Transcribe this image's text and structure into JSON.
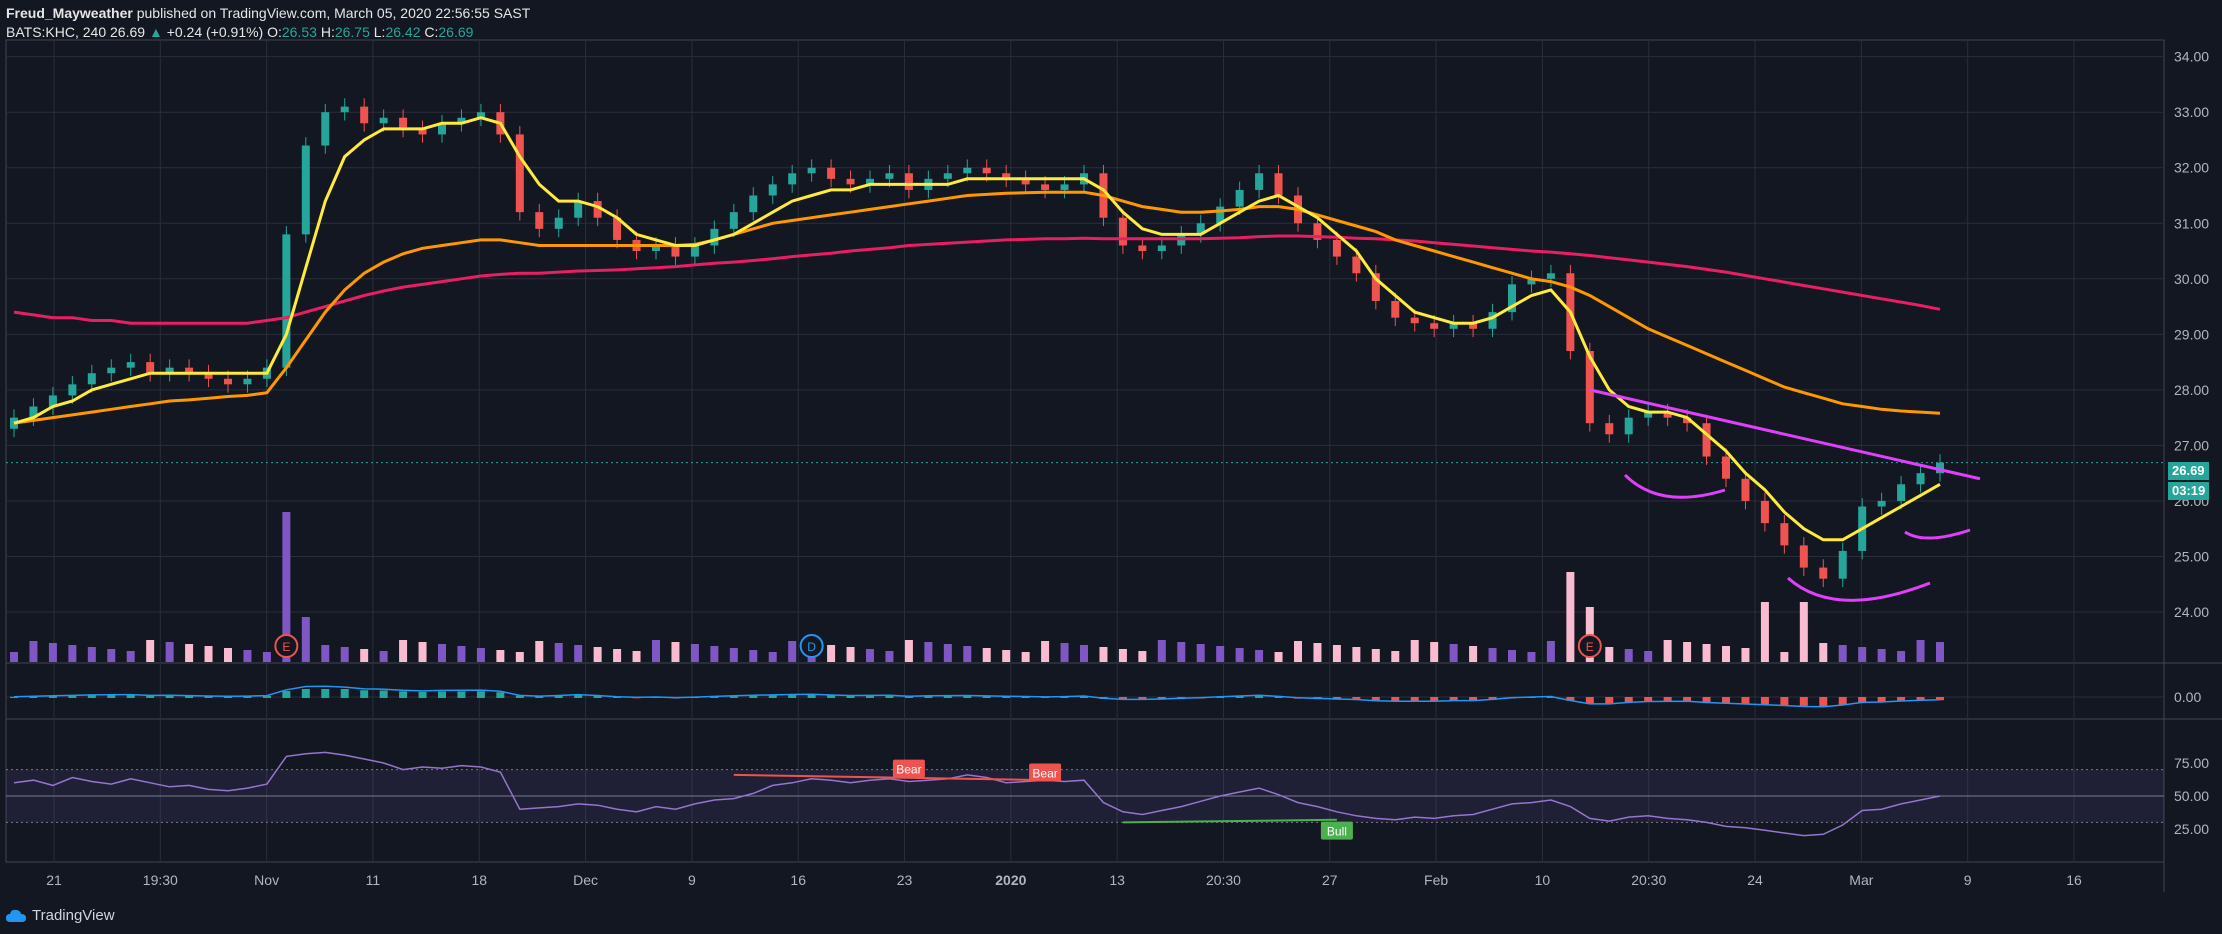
{
  "header": {
    "author": "Freud_Mayweather",
    "published": "published on TradingView.com, March 05, 2020 22:56:55 SAST",
    "symbol": "BATS:KHC, 240",
    "last": "26.69",
    "change": "+0.24 (+0.91%)",
    "o_label": "O:",
    "o_val": "26.53",
    "h_label": "H:",
    "h_val": "26.75",
    "l_label": "L:",
    "l_val": "26.42",
    "c_label": "C:",
    "c_val": "26.69"
  },
  "footer": {
    "brand": "TradingView"
  },
  "colors": {
    "background": "#131722",
    "grid": "#2a2e39",
    "up": "#26a69a",
    "down": "#ef5350",
    "ema_fast": "#ffeb3b",
    "ema_mid": "#ff9800",
    "ema_slow": "#e91e63",
    "drawing": "#e040fb",
    "volume_up": "#7e57c2",
    "volume_down": "#f8bbd0",
    "rsi": "#9575cd",
    "bear": "#ef5350",
    "bull": "#4caf50"
  },
  "chart_data": {
    "type": "candlestick",
    "x_ticks": [
      "21",
      "19:30",
      "Nov",
      "11",
      "18",
      "Dec",
      "9",
      "16",
      "23",
      "2020",
      "13",
      "20:30",
      "27",
      "Feb",
      "10",
      "20:30",
      "24",
      "Mar",
      "9",
      "16"
    ],
    "y_ticks": [
      "34.00",
      "33.00",
      "32.00",
      "31.00",
      "30.00",
      "29.00",
      "28.00",
      "27.00",
      "26.00",
      "25.00",
      "24.00"
    ],
    "ylim": [
      23.1,
      34.3
    ],
    "last_price": "26.69",
    "countdown": "03:19",
    "closes": [
      27.5,
      27.7,
      27.9,
      28.1,
      28.3,
      28.4,
      28.5,
      28.3,
      28.4,
      28.3,
      28.2,
      28.1,
      28.2,
      28.4,
      30.8,
      32.4,
      33.0,
      33.1,
      32.8,
      32.9,
      32.7,
      32.6,
      32.8,
      32.9,
      33.0,
      32.6,
      31.2,
      30.9,
      31.1,
      31.4,
      31.1,
      30.7,
      30.5,
      30.6,
      30.4,
      30.6,
      30.9,
      31.2,
      31.5,
      31.7,
      31.9,
      32.0,
      31.8,
      31.7,
      31.8,
      31.9,
      31.6,
      31.8,
      31.9,
      32.0,
      31.9,
      31.8,
      31.7,
      31.6,
      31.7,
      31.9,
      31.1,
      30.6,
      30.5,
      30.6,
      30.8,
      31.0,
      31.3,
      31.6,
      31.9,
      31.5,
      31.0,
      30.7,
      30.4,
      30.1,
      29.6,
      29.3,
      29.2,
      29.1,
      29.2,
      29.1,
      29.4,
      29.9,
      30.0,
      30.1,
      28.7,
      27.4,
      27.2,
      27.5,
      27.6,
      27.5,
      27.4,
      26.8,
      26.4,
      26.0,
      25.6,
      25.2,
      24.8,
      24.6,
      25.1,
      25.9,
      26.0,
      26.3,
      26.5,
      26.69
    ],
    "ema_fast": [
      27.4,
      27.5,
      27.7,
      27.8,
      28.0,
      28.1,
      28.2,
      28.3,
      28.3,
      28.3,
      28.3,
      28.3,
      28.3,
      28.3,
      29.0,
      30.2,
      31.4,
      32.2,
      32.5,
      32.7,
      32.7,
      32.7,
      32.8,
      32.8,
      32.9,
      32.8,
      32.2,
      31.7,
      31.4,
      31.4,
      31.3,
      31.1,
      30.8,
      30.7,
      30.6,
      30.6,
      30.7,
      30.8,
      31.0,
      31.2,
      31.4,
      31.5,
      31.6,
      31.6,
      31.7,
      31.7,
      31.7,
      31.7,
      31.7,
      31.8,
      31.8,
      31.8,
      31.8,
      31.8,
      31.8,
      31.8,
      31.6,
      31.2,
      30.9,
      30.8,
      30.8,
      30.8,
      31.0,
      31.2,
      31.4,
      31.5,
      31.3,
      31.1,
      30.8,
      30.5,
      30.0,
      29.7,
      29.4,
      29.3,
      29.2,
      29.2,
      29.3,
      29.5,
      29.7,
      29.8,
      29.4,
      28.6,
      28.0,
      27.7,
      27.6,
      27.6,
      27.5,
      27.2,
      26.9,
      26.5,
      26.2,
      25.8,
      25.5,
      25.3,
      25.3,
      25.5,
      25.7,
      25.9,
      26.1,
      26.3
    ],
    "ema_mid": [
      27.4,
      27.45,
      27.5,
      27.55,
      27.6,
      27.65,
      27.7,
      27.75,
      27.8,
      27.82,
      27.85,
      27.88,
      27.9,
      27.95,
      28.4,
      28.9,
      29.4,
      29.8,
      30.1,
      30.3,
      30.45,
      30.55,
      30.6,
      30.65,
      30.7,
      30.7,
      30.65,
      30.6,
      30.6,
      30.6,
      30.6,
      30.6,
      30.6,
      30.6,
      30.6,
      30.62,
      30.7,
      30.8,
      30.9,
      31.0,
      31.05,
      31.1,
      31.15,
      31.2,
      31.25,
      31.3,
      31.35,
      31.4,
      31.45,
      31.5,
      31.52,
      31.54,
      31.55,
      31.56,
      31.56,
      31.56,
      31.5,
      31.4,
      31.3,
      31.25,
      31.2,
      31.2,
      31.22,
      31.25,
      31.3,
      31.3,
      31.25,
      31.15,
      31.05,
      30.95,
      30.85,
      30.7,
      30.6,
      30.5,
      30.4,
      30.3,
      30.2,
      30.1,
      30.0,
      29.95,
      29.85,
      29.7,
      29.5,
      29.3,
      29.1,
      28.95,
      28.8,
      28.65,
      28.5,
      28.35,
      28.2,
      28.05,
      27.95,
      27.85,
      27.75,
      27.7,
      27.65,
      27.62,
      27.6,
      27.58
    ],
    "ema_slow": [
      29.4,
      29.35,
      29.3,
      29.3,
      29.25,
      29.25,
      29.2,
      29.2,
      29.2,
      29.2,
      29.2,
      29.2,
      29.2,
      29.25,
      29.3,
      29.4,
      29.5,
      29.6,
      29.7,
      29.78,
      29.85,
      29.9,
      29.95,
      30.0,
      30.05,
      30.08,
      30.1,
      30.1,
      30.12,
      30.14,
      30.15,
      30.16,
      30.18,
      30.2,
      30.22,
      30.25,
      30.28,
      30.3,
      30.33,
      30.36,
      30.4,
      30.43,
      30.46,
      30.5,
      30.53,
      30.56,
      30.6,
      30.62,
      30.64,
      30.66,
      30.68,
      30.7,
      30.71,
      30.72,
      30.72,
      30.73,
      30.72,
      30.72,
      30.72,
      30.72,
      30.72,
      30.72,
      30.73,
      30.74,
      30.76,
      30.77,
      30.77,
      30.76,
      30.75,
      30.73,
      30.72,
      30.7,
      30.68,
      30.65,
      30.62,
      30.59,
      30.56,
      30.53,
      30.5,
      30.48,
      30.45,
      30.42,
      30.38,
      30.34,
      30.3,
      30.26,
      30.22,
      30.17,
      30.12,
      30.06,
      30.0,
      29.94,
      29.88,
      29.82,
      29.76,
      29.7,
      29.64,
      29.58,
      29.52,
      29.45
    ],
    "earnings_markers": [
      "E",
      "D",
      "E"
    ],
    "macd": {
      "y_ticks": [
        "0.00"
      ]
    },
    "rsi": {
      "y_ticks": [
        "75.00",
        "50.00",
        "25.00"
      ],
      "band": [
        30,
        70
      ],
      "values": [
        60,
        62,
        58,
        64,
        61,
        59,
        63,
        60,
        57,
        58,
        55,
        54,
        56,
        59,
        80,
        82,
        83,
        81,
        78,
        75,
        70,
        72,
        71,
        73,
        72,
        68,
        40,
        41,
        42,
        44,
        43,
        40,
        38,
        42,
        40,
        44,
        47,
        48,
        52,
        58,
        60,
        63,
        62,
        60,
        62,
        63,
        61,
        62,
        63,
        66,
        64,
        60,
        61,
        62,
        61,
        62,
        45,
        38,
        36,
        39,
        42,
        46,
        50,
        53,
        56,
        51,
        45,
        42,
        38,
        35,
        33,
        32,
        34,
        33,
        35,
        36,
        40,
        44,
        45,
        47,
        42,
        33,
        31,
        34,
        35,
        33,
        32,
        30,
        27,
        26,
        24,
        22,
        20,
        21,
        28,
        39,
        40,
        44,
        47,
        50
      ],
      "signals": [
        "Bear",
        "Bear",
        "Bull"
      ]
    }
  }
}
